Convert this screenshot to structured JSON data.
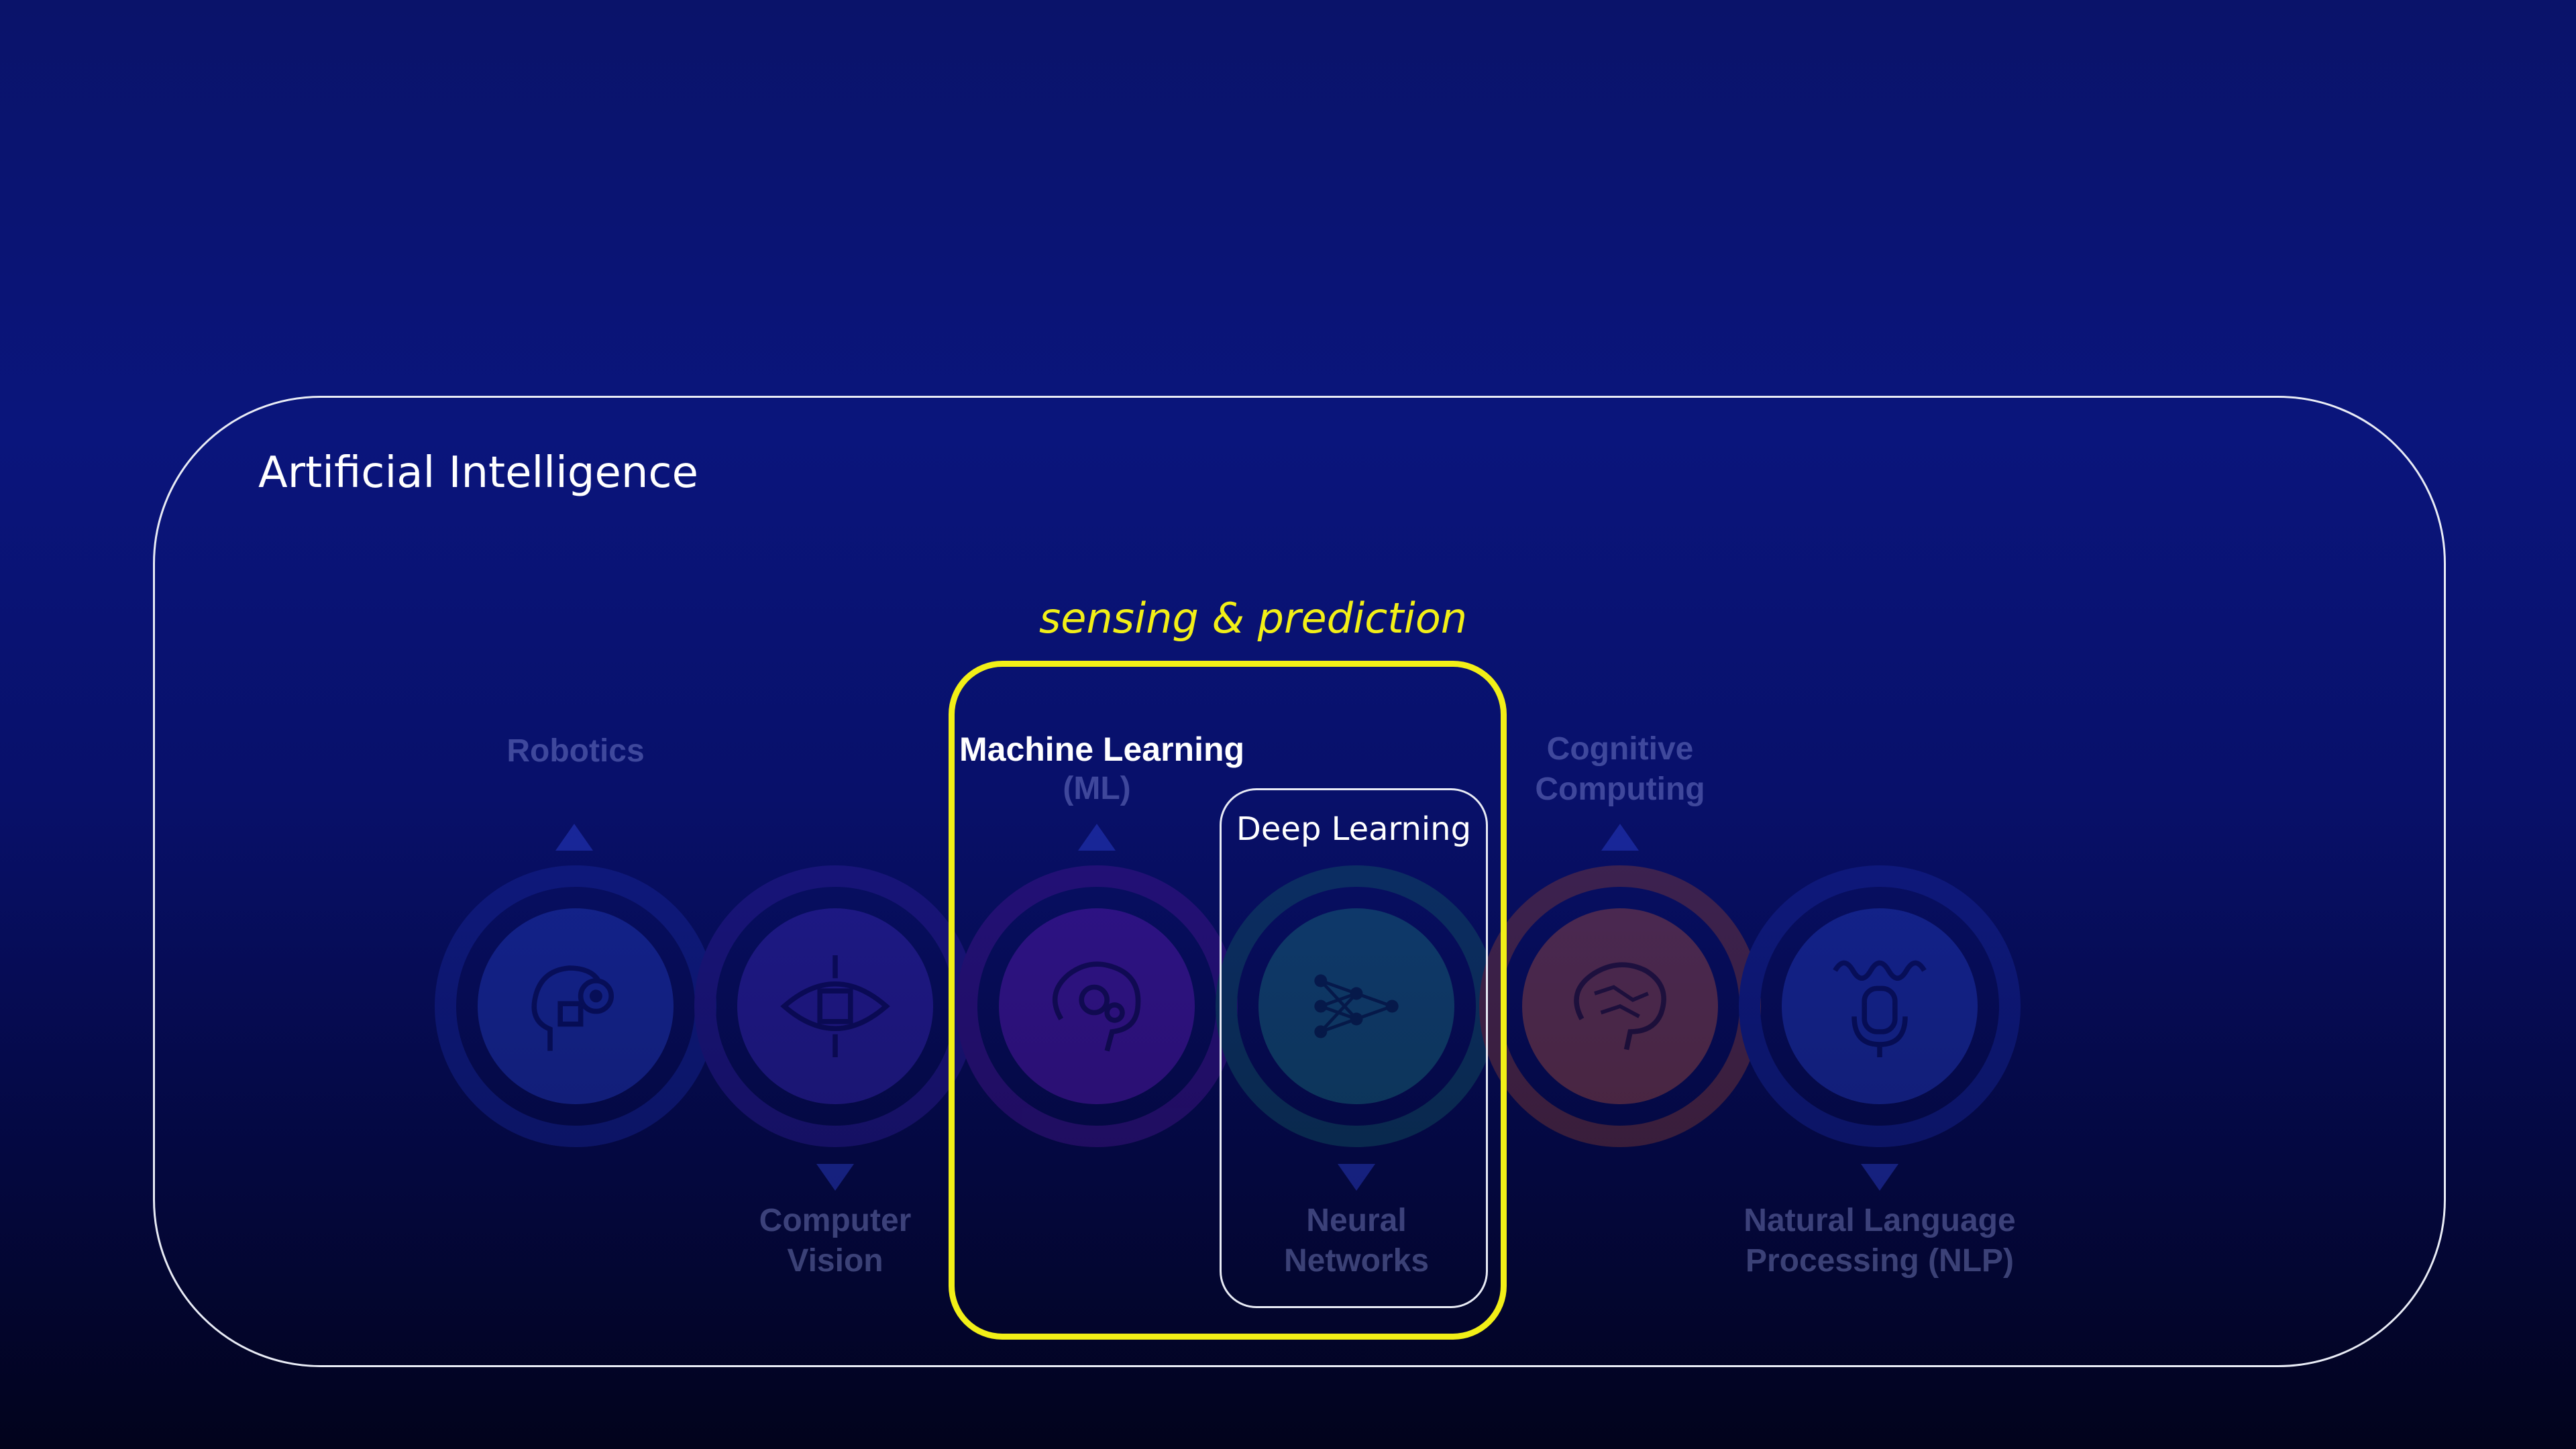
{
  "diagram": {
    "outer_title": "Artificial Intelligence",
    "highlight_caption": "sensing & prediction",
    "highlight_label": "Machine Learning",
    "highlight_color": "#f2ef17",
    "inner_label": "Deep Learning",
    "nodes": [
      {
        "label": "Robotics",
        "icon": "robot-head-gear-icon",
        "color": "#2d4be0"
      },
      {
        "label": "Computer\nVision",
        "icon": "eye-chip-icon",
        "color": "#4a2fd0"
      },
      {
        "label": "Machine Learning\n(ML)",
        "icon": "brain-gears-icon",
        "color": "#7a1fd0"
      },
      {
        "label": "Neural\nNetworks",
        "icon": "neural-network-icon",
        "color": "#1f8f86"
      },
      {
        "label": "Cognitive\nComputing",
        "icon": "brain-circuit-icon",
        "color": "#d2603a"
      },
      {
        "label": "Natural Language\nProcessing (NLP)",
        "icon": "microphone-wave-icon",
        "color": "#2d4be0"
      }
    ],
    "ml_sub": "(ML)"
  }
}
